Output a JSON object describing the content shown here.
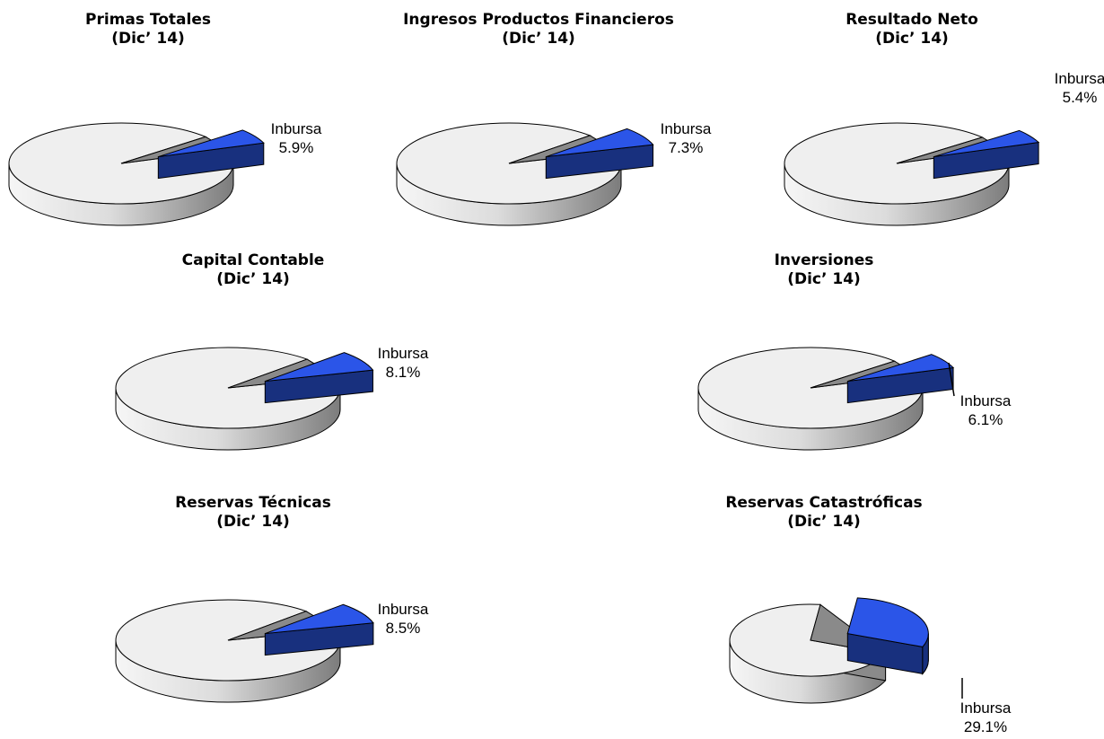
{
  "chart_data": [
    {
      "type": "pie",
      "title": "Primas Totales",
      "subtitle": "(Dic’ 14)",
      "slices": [
        {
          "label": "Inbursa",
          "value": 5.9
        },
        {
          "label": "",
          "value": 94.1
        }
      ],
      "label_text": "Inbursa",
      "value_text": "5.9%"
    },
    {
      "type": "pie",
      "title": "Ingresos Productos Financieros",
      "subtitle": "(Dic’ 14)",
      "slices": [
        {
          "label": "Inbursa",
          "value": 7.3
        },
        {
          "label": "",
          "value": 92.7
        }
      ],
      "label_text": "Inbursa",
      "value_text": "7.3%"
    },
    {
      "type": "pie",
      "title": "Resultado Neto",
      "subtitle": "(Dic’ 14)",
      "slices": [
        {
          "label": "Inbursa",
          "value": 5.4
        },
        {
          "label": "",
          "value": 94.6
        }
      ],
      "label_text": "Inbursa",
      "value_text": "5.4%"
    },
    {
      "type": "pie",
      "title": "Capital Contable",
      "subtitle": "(Dic’ 14)",
      "slices": [
        {
          "label": "Inbursa",
          "value": 8.1
        },
        {
          "label": "",
          "value": 91.9
        }
      ],
      "label_text": "Inbursa",
      "value_text": "8.1%"
    },
    {
      "type": "pie",
      "title": "Inversiones",
      "subtitle": "(Dic’ 14)",
      "slices": [
        {
          "label": "Inbursa",
          "value": 6.1
        },
        {
          "label": "",
          "value": 93.9
        }
      ],
      "label_text": "Inbursa",
      "value_text": "6.1%"
    },
    {
      "type": "pie",
      "title": "Reservas Técnicas",
      "subtitle": "(Dic’ 14)",
      "slices": [
        {
          "label": "Inbursa",
          "value": 8.5
        },
        {
          "label": "",
          "value": 91.5
        }
      ],
      "label_text": "Inbursa",
      "value_text": "8.5%"
    },
    {
      "type": "pie",
      "title": "Reservas Catastróficas",
      "subtitle": "(Dic’ 14)",
      "slices": [
        {
          "label": "Inbursa",
          "value": 29.1
        },
        {
          "label": "",
          "value": 70.9
        }
      ],
      "label_text": "Inbursa",
      "value_text": "29.1%"
    }
  ],
  "colors": {
    "inbursa_top": "#2b55e8",
    "inbursa_side": "#18307e",
    "rest_top": "#efefef",
    "rest_side_light": "#f4f4f4",
    "rest_side_dark": "#8c8c8c",
    "inner_wall": "#8a8a8a",
    "outline": "#000000"
  }
}
